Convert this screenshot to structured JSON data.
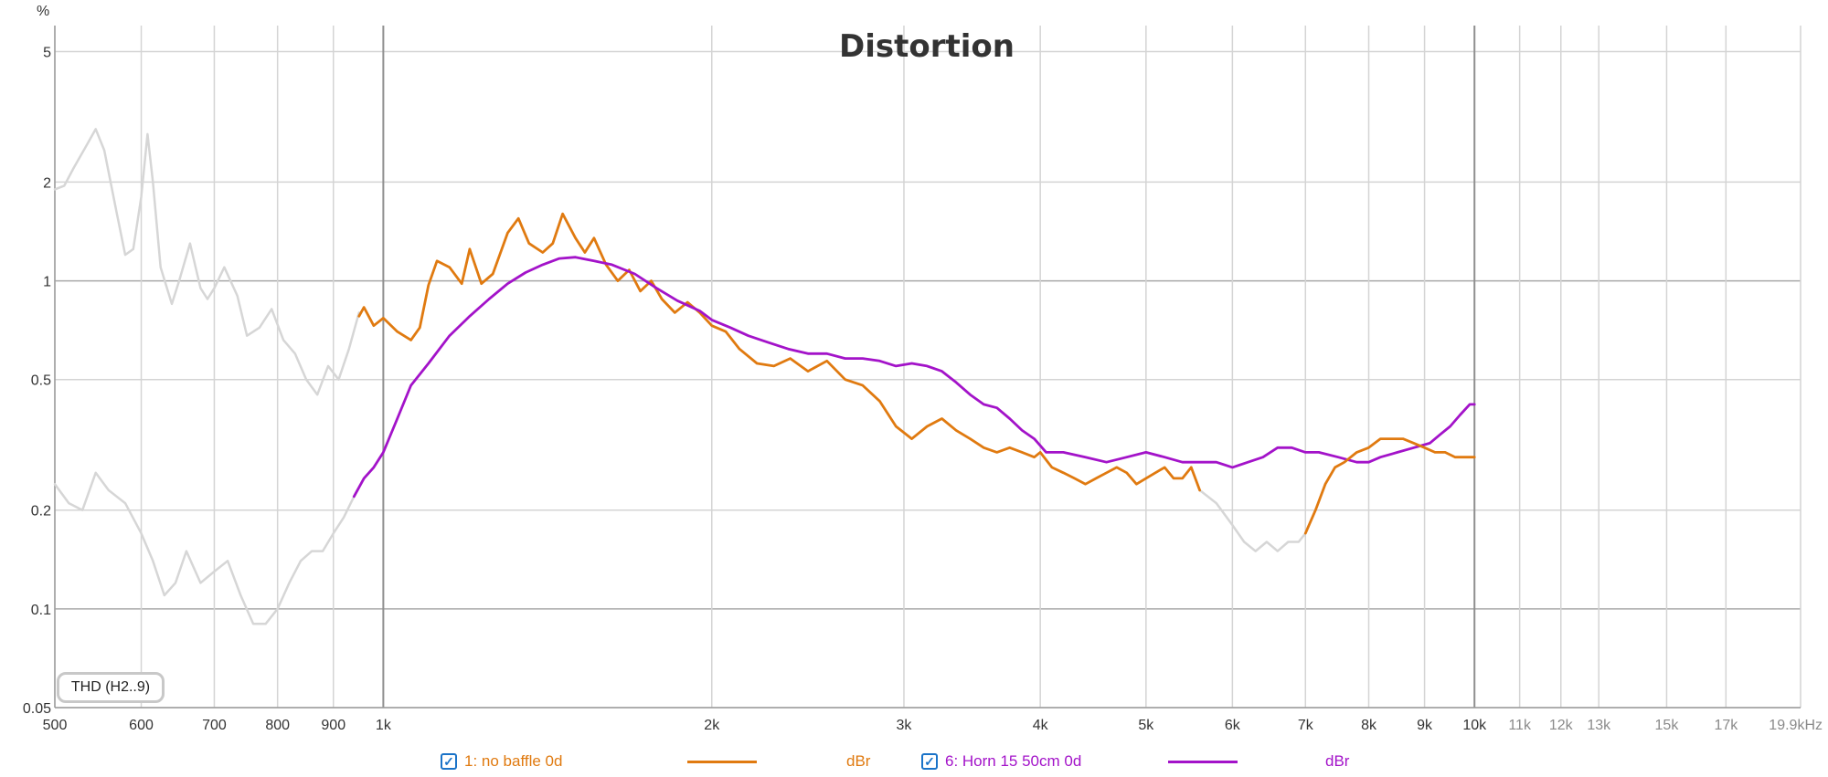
{
  "chart_data": {
    "type": "line",
    "title": "Distortion",
    "ylabel": "%",
    "xunit": "kHz",
    "xscale": "log",
    "yscale": "log",
    "xlim": [
      500,
      19900
    ],
    "ylim": [
      0.05,
      6
    ],
    "grid": true,
    "legend_placement": "bottom",
    "x_ticks": [
      {
        "v": 500,
        "label": "500"
      },
      {
        "v": 600,
        "label": "600"
      },
      {
        "v": 700,
        "label": "700"
      },
      {
        "v": 800,
        "label": "800"
      },
      {
        "v": 900,
        "label": "900"
      },
      {
        "v": 1000,
        "label": "1k"
      },
      {
        "v": 2000,
        "label": "2k"
      },
      {
        "v": 3000,
        "label": "3k"
      },
      {
        "v": 4000,
        "label": "4k"
      },
      {
        "v": 5000,
        "label": "5k"
      },
      {
        "v": 6000,
        "label": "6k"
      },
      {
        "v": 7000,
        "label": "7k"
      },
      {
        "v": 8000,
        "label": "8k"
      },
      {
        "v": 9000,
        "label": "9k"
      },
      {
        "v": 10000,
        "label": "10k"
      },
      {
        "v": 11000,
        "label": "11k"
      },
      {
        "v": 12000,
        "label": "12k"
      },
      {
        "v": 13000,
        "label": "13k"
      },
      {
        "v": 15000,
        "label": "15k"
      },
      {
        "v": 17000,
        "label": "17k"
      },
      {
        "v": 19900,
        "label": "19.9kHz"
      }
    ],
    "y_ticks": [
      {
        "v": 5,
        "label": "5"
      },
      {
        "v": 2,
        "label": "2"
      },
      {
        "v": 1,
        "label": "1"
      },
      {
        "v": 0.5,
        "label": "0.5"
      },
      {
        "v": 0.2,
        "label": "0.2"
      },
      {
        "v": 0.1,
        "label": "0.1"
      },
      {
        "v": 0.05,
        "label": "0.05"
      }
    ],
    "series": [
      {
        "name": "1: no baffle 0d",
        "unit": "dBr",
        "color": "#e07a10",
        "x": [
          950,
          960,
          980,
          1000,
          1030,
          1060,
          1080,
          1100,
          1120,
          1150,
          1180,
          1200,
          1230,
          1260,
          1300,
          1330,
          1360,
          1400,
          1430,
          1460,
          1500,
          1530,
          1560,
          1600,
          1640,
          1680,
          1720,
          1760,
          1800,
          1850,
          1900,
          1950,
          2000,
          2060,
          2120,
          2200,
          2280,
          2360,
          2450,
          2550,
          2650,
          2750,
          2850,
          2950,
          3050,
          3150,
          3250,
          3350,
          3450,
          3550,
          3650,
          3750,
          3850,
          3950,
          4000,
          4100,
          4200,
          4300,
          4400,
          4500,
          4600,
          4700,
          4800,
          4900,
          5000,
          5100,
          5200,
          5300,
          5400,
          5500,
          5600
        ],
        "y": [
          0.78,
          0.83,
          0.73,
          0.77,
          0.7,
          0.66,
          0.72,
          0.97,
          1.15,
          1.1,
          0.98,
          1.25,
          0.98,
          1.05,
          1.4,
          1.55,
          1.3,
          1.22,
          1.3,
          1.6,
          1.35,
          1.22,
          1.35,
          1.12,
          1.0,
          1.08,
          0.93,
          1.0,
          0.88,
          0.8,
          0.86,
          0.8,
          0.73,
          0.7,
          0.62,
          0.56,
          0.55,
          0.58,
          0.53,
          0.57,
          0.5,
          0.48,
          0.43,
          0.36,
          0.33,
          0.36,
          0.38,
          0.35,
          0.33,
          0.31,
          0.3,
          0.31,
          0.3,
          0.29,
          0.3,
          0.27,
          0.26,
          0.25,
          0.24,
          0.25,
          0.26,
          0.27,
          0.26,
          0.24,
          0.25,
          0.26,
          0.27,
          0.25,
          0.25,
          0.27,
          0.23
        ]
      },
      {
        "name": "6: Horn 15 50cm 0d",
        "unit": "dBr",
        "color": "#a313c9",
        "x": [
          940,
          960,
          980,
          1000,
          1030,
          1060,
          1100,
          1150,
          1200,
          1250,
          1300,
          1350,
          1400,
          1450,
          1500,
          1560,
          1620,
          1700,
          1780,
          1860,
          1950,
          2000,
          2080,
          2160,
          2250,
          2350,
          2450,
          2550,
          2650,
          2750,
          2850,
          2950,
          3050,
          3150,
          3250,
          3350,
          3450,
          3550,
          3650,
          3750,
          3850,
          3950,
          4050,
          4200,
          4400,
          4600,
          4800,
          5000,
          5200,
          5400,
          5600,
          5800,
          6000,
          6200,
          6400,
          6600,
          6800,
          7000,
          7200,
          7500,
          7800,
          8000,
          8200,
          8500,
          8800,
          9100,
          9300,
          9500,
          9700,
          9900,
          10000
        ],
        "y": [
          0.22,
          0.25,
          0.27,
          0.3,
          0.38,
          0.48,
          0.56,
          0.68,
          0.78,
          0.88,
          0.98,
          1.06,
          1.12,
          1.17,
          1.18,
          1.15,
          1.12,
          1.05,
          0.95,
          0.87,
          0.81,
          0.76,
          0.72,
          0.68,
          0.65,
          0.62,
          0.6,
          0.6,
          0.58,
          0.58,
          0.57,
          0.55,
          0.56,
          0.55,
          0.53,
          0.49,
          0.45,
          0.42,
          0.41,
          0.38,
          0.35,
          0.33,
          0.3,
          0.3,
          0.29,
          0.28,
          0.29,
          0.3,
          0.29,
          0.28,
          0.28,
          0.28,
          0.27,
          0.28,
          0.29,
          0.31,
          0.31,
          0.3,
          0.3,
          0.29,
          0.28,
          0.28,
          0.29,
          0.3,
          0.31,
          0.32,
          0.34,
          0.36,
          0.39,
          0.42,
          0.42
        ]
      },
      {
        "name": "",
        "color": "#d6d6d6",
        "x": [
          500,
          510,
          520,
          535,
          545,
          555,
          570,
          580,
          590,
          600,
          608,
          615,
          625,
          640,
          650,
          665,
          680,
          690,
          700,
          715,
          735,
          750,
          770,
          790,
          810,
          830,
          850,
          870,
          890,
          910,
          930,
          950
        ],
        "y": [
          1.9,
          1.95,
          2.2,
          2.6,
          2.9,
          2.5,
          1.6,
          1.2,
          1.25,
          1.8,
          2.8,
          2.0,
          1.1,
          0.85,
          1.0,
          1.3,
          0.95,
          0.88,
          0.95,
          1.1,
          0.9,
          0.68,
          0.72,
          0.82,
          0.66,
          0.6,
          0.5,
          0.45,
          0.55,
          0.5,
          0.62,
          0.8
        ]
      },
      {
        "name": "",
        "color": "#d6d6d6",
        "x": [
          500,
          515,
          530,
          545,
          560,
          580,
          600,
          615,
          630,
          645,
          660,
          680,
          700,
          720,
          740,
          760,
          780,
          800,
          820,
          840,
          860,
          880,
          900,
          920,
          940
        ],
        "y": [
          0.24,
          0.21,
          0.2,
          0.26,
          0.23,
          0.21,
          0.17,
          0.14,
          0.11,
          0.12,
          0.15,
          0.12,
          0.13,
          0.14,
          0.11,
          0.09,
          0.09,
          0.1,
          0.12,
          0.14,
          0.15,
          0.15,
          0.17,
          0.19,
          0.22
        ]
      },
      {
        "name": "",
        "color": "#d6d6d6",
        "x": [
          5600,
          5800,
          6000,
          6150,
          6300,
          6450,
          6600,
          6750,
          6900,
          7000
        ],
        "y": [
          0.23,
          0.21,
          0.18,
          0.16,
          0.15,
          0.16,
          0.15,
          0.16,
          0.16,
          0.17
        ]
      },
      {
        "name": "",
        "color": "#e07a10",
        "x": [
          7000,
          7150,
          7300,
          7450,
          7600,
          7800,
          8000,
          8200,
          8400,
          8600,
          8800,
          9000,
          9200,
          9400,
          9600,
          9800,
          10000
        ],
        "y": [
          0.17,
          0.2,
          0.24,
          0.27,
          0.28,
          0.3,
          0.31,
          0.33,
          0.33,
          0.33,
          0.32,
          0.31,
          0.3,
          0.3,
          0.29,
          0.29,
          0.29
        ]
      }
    ],
    "badge": "THD (H2..9)"
  }
}
